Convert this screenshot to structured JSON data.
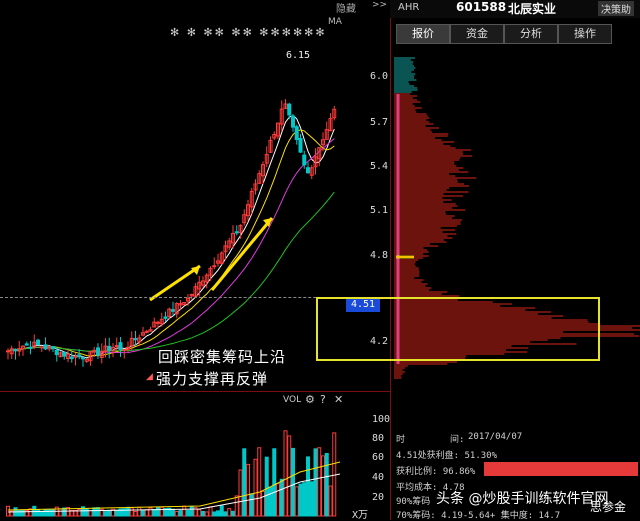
{
  "header": {
    "hide_label": "隐藏",
    "code_prefix": "AHR",
    "stock_code": "601588",
    "stock_name": "北辰实业",
    "decision_label": "决策助",
    "chevron": ">>"
  },
  "tabs": [
    {
      "label": "报价",
      "active": true
    },
    {
      "label": "资金",
      "active": false
    },
    {
      "label": "分析",
      "active": false
    },
    {
      "label": "操作",
      "active": false
    }
  ],
  "main_chart": {
    "ma_label": "MA",
    "stars": "✻  ✻  ✻✻  ✻✻  ✻✻✻✻✻✻",
    "high_label": "6.15",
    "price_ticks": [
      "6.0",
      "5.7",
      "5.4",
      "5.1",
      "4.8",
      "4.5",
      "4.2"
    ],
    "current_price": "4.51"
  },
  "volume_chart": {
    "label": "VOL",
    "ticks": [
      "100",
      "80",
      "60",
      "40",
      "20"
    ],
    "unit": "X万"
  },
  "annotations": {
    "line1": "回踩密集筹码上沿",
    "line2": "强力支撑再反弹"
  },
  "info_panel": {
    "time_label": "时",
    "time_sep": "间:",
    "date": "2017/04/07",
    "price_profit": "4.51处获利盘: 51.30%",
    "profit_ratio_label": "获利比例: 96.86%",
    "avg_cost": "平均成本: 4.78",
    "chip90": "90%筹码",
    "chip70": "70%筹码: 4.19-5.64+ 集中度: 14.7"
  },
  "watermark": {
    "text": "头条 @炒股手训练软件官网",
    "text2": "思参金"
  },
  "colors": {
    "up": "#ff3b3b",
    "down": "#00c8c8",
    "profile_red": "#d9261c",
    "profile_cyan": "#13a7a7",
    "avg_cost": "#f2c200",
    "box": "#e7e22a",
    "price_marker": "#1a4ad8",
    "ma_yellow": "#ffe000",
    "ma_white": "#ffffff",
    "ma_magenta": "#e23ce2",
    "ma_green": "#1ec21e"
  },
  "icons": {
    "gear": "gear-icon",
    "help": "help-icon",
    "close": "close-icon",
    "star": "marker-star-icon"
  }
}
